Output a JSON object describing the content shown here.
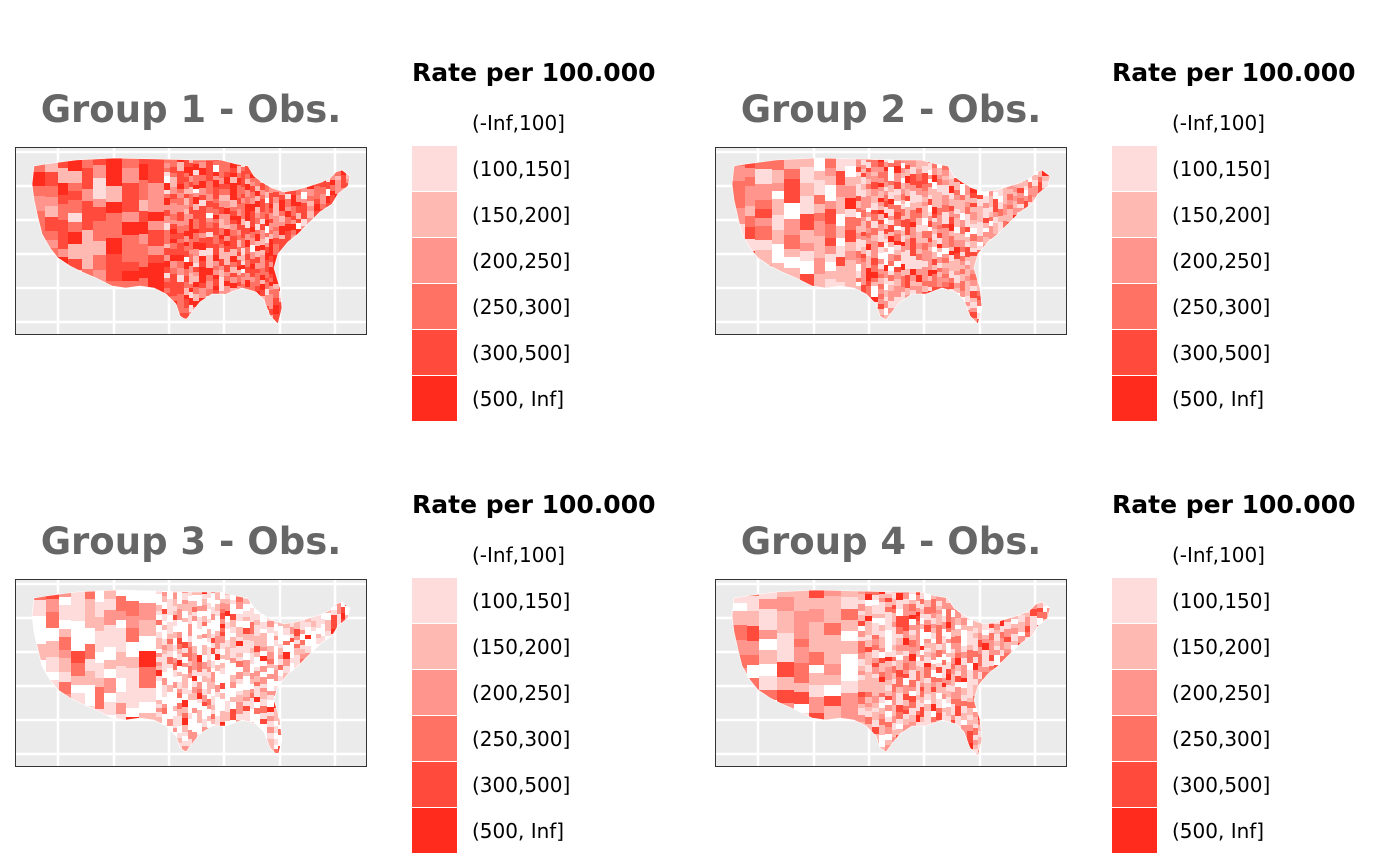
{
  "legend": {
    "title": "Rate per 100.000",
    "classes": [
      {
        "label": "(-Inf,100]",
        "color": "#ffffff"
      },
      {
        "label": "(100,150]",
        "color": "#ffdcdc"
      },
      {
        "label": "(150,200]",
        "color": "#ffb9b3"
      },
      {
        "label": "(200,250]",
        "color": "#ff958c"
      },
      {
        "label": "(250,300]",
        "color": "#ff7264"
      },
      {
        "label": "(300,500]",
        "color": "#ff4a3c"
      },
      {
        "label": "(500, Inf]",
        "color": "#ff2c1e"
      }
    ]
  },
  "panels": [
    {
      "title": "Group 1 - Obs.",
      "class_weights": [
        0.02,
        0.05,
        0.1,
        0.16,
        0.22,
        0.27,
        0.18
      ]
    },
    {
      "title": "Group 2 - Obs.",
      "class_weights": [
        0.08,
        0.17,
        0.22,
        0.21,
        0.16,
        0.11,
        0.05
      ]
    },
    {
      "title": "Group 3 - Obs.",
      "class_weights": [
        0.32,
        0.26,
        0.18,
        0.11,
        0.07,
        0.04,
        0.02
      ]
    },
    {
      "title": "Group 4 - Obs.",
      "class_weights": [
        0.12,
        0.2,
        0.22,
        0.19,
        0.13,
        0.09,
        0.05
      ]
    }
  ],
  "map": {
    "background": "#ebebeb",
    "gridline_color": "#ffffff",
    "border_color": "#333333"
  }
}
